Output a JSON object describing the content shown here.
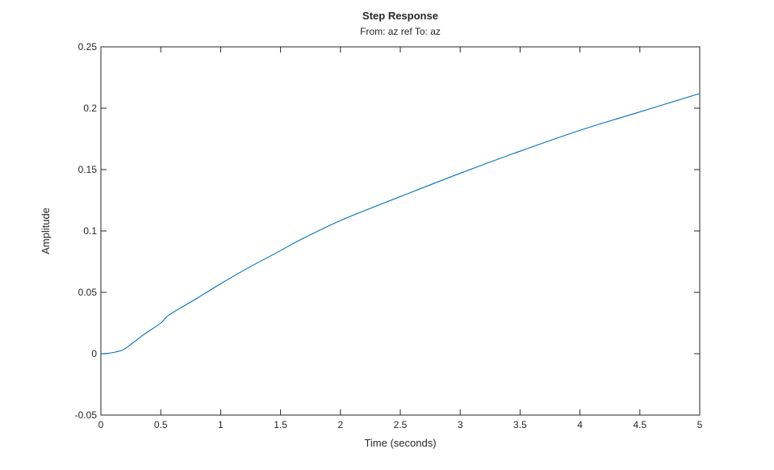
{
  "chart_data": {
    "type": "line",
    "title": "Step Response",
    "subtitle": "From: az ref  To: az",
    "xlabel": "Time (seconds)",
    "ylabel": "Amplitude",
    "xlim": [
      0,
      5
    ],
    "ylim": [
      -0.05,
      0.25
    ],
    "xticks": [
      "0",
      "0.5",
      "1",
      "1.5",
      "2",
      "2.5",
      "3",
      "3.5",
      "4",
      "4.5",
      "5"
    ],
    "yticks": [
      "-0.05",
      "0",
      "0.05",
      "0.1",
      "0.15",
      "0.2",
      "0.25"
    ],
    "grid": false,
    "series": [
      {
        "color": "#0072BD",
        "x": [
          0,
          0.05,
          0.12,
          0.2,
          0.35,
          0.5,
          0.57,
          0.8,
          1.0,
          1.25,
          1.5,
          1.65,
          2.0,
          2.5,
          3.0,
          3.5,
          4.0,
          4.5,
          5.0
        ],
        "y": [
          0,
          0.0002,
          0.0013,
          0.004,
          0.015,
          0.025,
          0.0316,
          0.045,
          0.057,
          0.071,
          0.084,
          0.092,
          0.1085,
          0.128,
          0.147,
          0.165,
          0.182,
          0.197,
          0.212
        ]
      }
    ]
  }
}
